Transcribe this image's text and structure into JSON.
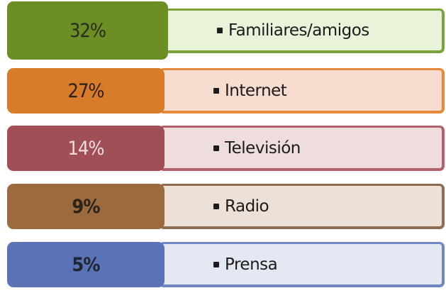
{
  "items": [
    {
      "percent": "32%",
      "label": "Familiares/amigos",
      "color": "#6b8f24",
      "light": "#e9f3da",
      "border": "#7aa33b",
      "text_color": "#2b2b1e"
    },
    {
      "percent": "27%",
      "label": "Internet",
      "color": "#d87c2c",
      "light": "#f6ddd0",
      "border": "#e58a3b",
      "text_color": "#2b2016"
    },
    {
      "percent": "14%",
      "label": "Televisión",
      "color": "#a04f56",
      "light": "#efdddd",
      "border": "#b0616a",
      "text_color": "#f3dcdc"
    },
    {
      "percent": "9%",
      "label": "Radio",
      "color": "#9b6a3f",
      "light": "#ede1d7",
      "border": "#8c6c52",
      "text_color": "#2b2218"
    },
    {
      "percent": "5%",
      "label": "Prensa",
      "color": "#5b73b6",
      "light": "#e4e8f3",
      "border": "#7087c1",
      "text_color": "#1f2433"
    }
  ]
}
